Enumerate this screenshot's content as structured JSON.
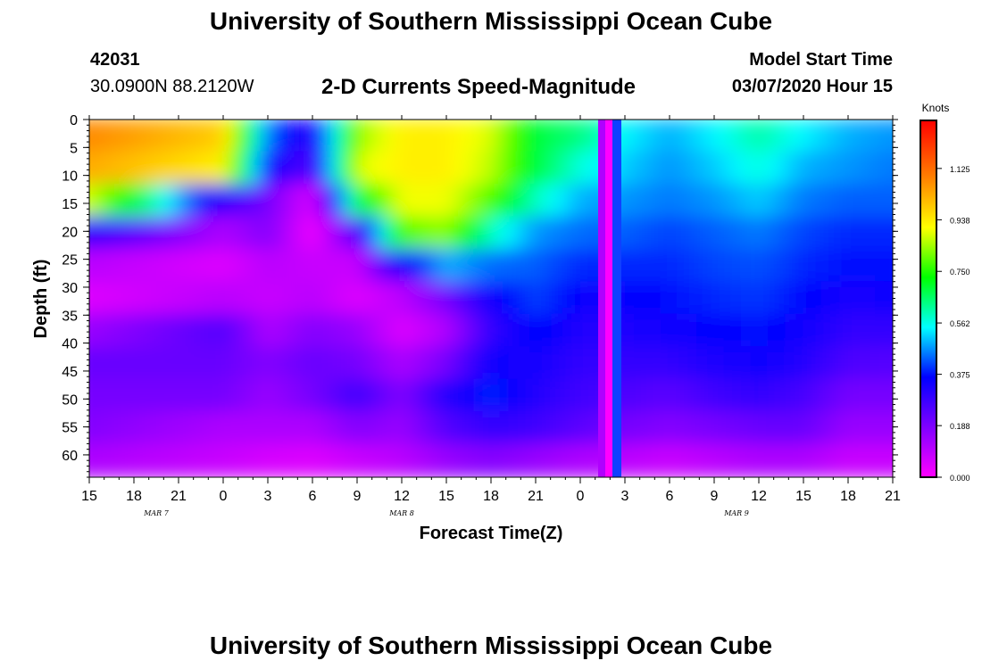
{
  "header": {
    "title_top": "University of Southern Mississippi Ocean Cube",
    "title_bottom": "University of Southern Mississippi Ocean Cube",
    "station_id": "42031",
    "station_coords": "30.0900N 88.2120W",
    "subtitle": "2-D Currents Speed-Magnitude",
    "model_start_label": "Model Start Time",
    "model_start_time": "03/07/2020 Hour 15"
  },
  "chart_data": {
    "type": "heatmap",
    "title": "2-D Currents Speed-Magnitude",
    "xlabel": "Forecast Time(Z)",
    "ylabel": "Depth (ft)",
    "x_ticks": [
      "15",
      "18",
      "21",
      "0",
      "3",
      "6",
      "9",
      "12",
      "15",
      "18",
      "21",
      "0",
      "3",
      "6",
      "9",
      "12",
      "15",
      "18",
      "21"
    ],
    "date_labels": [
      {
        "label": "MAR 7",
        "at_tick": 1.5
      },
      {
        "label": "MAR 8",
        "at_tick": 7
      },
      {
        "label": "MAR 9",
        "at_tick": 14.5
      }
    ],
    "y_ticks": [
      0,
      5,
      10,
      15,
      20,
      25,
      30,
      35,
      40,
      45,
      50,
      55,
      60
    ],
    "ylim": [
      0,
      64
    ],
    "y_inverted": true,
    "colorbar": {
      "unit": "Knots",
      "ticks": [
        "0.000",
        "0.188",
        "0.375",
        "0.562",
        "0.750",
        "0.938",
        "1.125"
      ],
      "range": [
        0,
        1.3
      ],
      "colors": [
        "#ff00ff",
        "#8000ff",
        "#0000ff",
        "#00ffff",
        "#00ff00",
        "#ffff00",
        "#ff8000",
        "#ff0000"
      ]
    },
    "series": [
      {
        "time_index": 0,
        "speeds": [
          1.1,
          1.05,
          0.9,
          0.3,
          0.1,
          0.05,
          0.15,
          0.22,
          0.2,
          0.18,
          0.12
        ]
      },
      {
        "time_index": 3,
        "speeds": [
          1.0,
          0.95,
          0.3,
          0.12,
          0.05,
          0.1,
          0.25,
          0.22,
          0.2,
          0.12,
          0.08
        ]
      },
      {
        "time_index": 4,
        "speeds": [
          0.45,
          0.35,
          0.2,
          0.18,
          0.1,
          0.08,
          0.12,
          0.18,
          0.15,
          0.12,
          0.06
        ]
      },
      {
        "time_index": 5,
        "speeds": [
          0.3,
          0.25,
          0.05,
          0.02,
          0.08,
          0.1,
          0.18,
          0.22,
          0.2,
          0.12,
          0.05
        ]
      },
      {
        "time_index": 6,
        "speeds": [
          0.85,
          0.9,
          0.7,
          0.25,
          0.08,
          0.05,
          0.15,
          0.2,
          0.28,
          0.18,
          0.08
        ]
      },
      {
        "time_index": 7,
        "speeds": [
          0.95,
          0.95,
          0.92,
          0.8,
          0.35,
          0.1,
          0.05,
          0.12,
          0.18,
          0.15,
          0.1
        ]
      },
      {
        "time_index": 8,
        "speeds": [
          0.95,
          0.95,
          0.92,
          0.85,
          0.5,
          0.2,
          0.12,
          0.2,
          0.32,
          0.25,
          0.15
        ]
      },
      {
        "time_index": 9,
        "speeds": [
          0.9,
          0.88,
          0.8,
          0.6,
          0.45,
          0.35,
          0.3,
          0.35,
          0.4,
          0.3,
          0.18
        ]
      },
      {
        "time_index": 10,
        "speeds": [
          0.7,
          0.7,
          0.6,
          0.48,
          0.44,
          0.42,
          0.38,
          0.34,
          0.32,
          0.28,
          0.15
        ]
      },
      {
        "time_index": 11,
        "speeds": [
          0.65,
          0.58,
          0.5,
          0.45,
          0.4,
          0.36,
          0.32,
          0.3,
          0.28,
          0.24,
          0.12
        ]
      },
      {
        "time_index": 12,
        "speeds": [
          0.55,
          0.52,
          0.48,
          0.44,
          0.4,
          0.36,
          0.33,
          0.3,
          0.26,
          0.2,
          0.1
        ]
      },
      {
        "time_index": 13,
        "speeds": [
          0.5,
          0.48,
          0.46,
          0.42,
          0.4,
          0.38,
          0.35,
          0.3,
          0.24,
          0.18,
          0.08
        ]
      },
      {
        "time_index": 14,
        "speeds": [
          0.55,
          0.52,
          0.48,
          0.44,
          0.42,
          0.4,
          0.37,
          0.33,
          0.28,
          0.2,
          0.1
        ]
      },
      {
        "time_index": 15,
        "speeds": [
          0.62,
          0.58,
          0.52,
          0.46,
          0.43,
          0.41,
          0.38,
          0.35,
          0.3,
          0.22,
          0.12
        ]
      },
      {
        "time_index": 16,
        "speeds": [
          0.55,
          0.5,
          0.46,
          0.42,
          0.4,
          0.38,
          0.35,
          0.32,
          0.27,
          0.22,
          0.12
        ]
      },
      {
        "time_index": 17,
        "speeds": [
          0.5,
          0.48,
          0.44,
          0.4,
          0.38,
          0.34,
          0.3,
          0.26,
          0.2,
          0.15,
          0.08
        ]
      },
      {
        "time_index": 18,
        "speeds": [
          0.48,
          0.46,
          0.44,
          0.4,
          0.38,
          0.35,
          0.3,
          0.25,
          0.2,
          0.15,
          0.08
        ]
      }
    ],
    "missing_band_time": 11.6,
    "grid": false
  }
}
